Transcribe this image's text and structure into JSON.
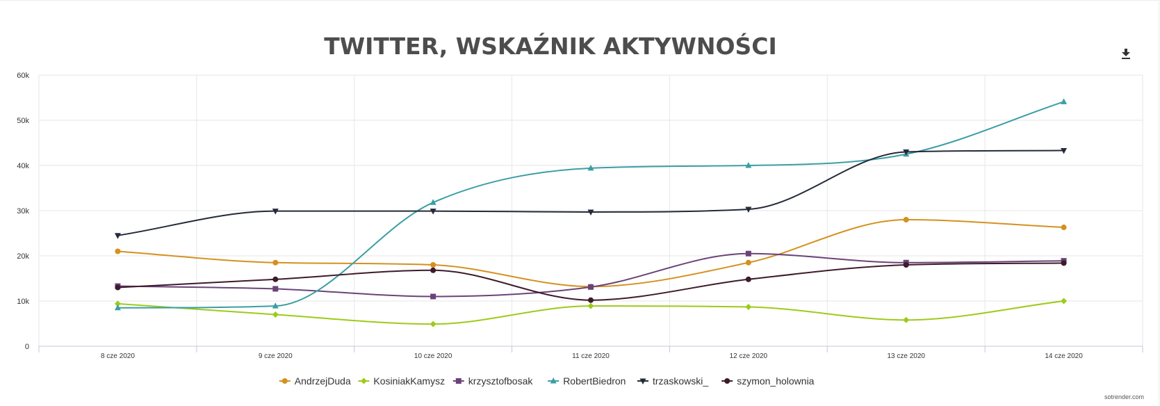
{
  "chart_data": {
    "type": "line",
    "title": "TWITTER, WSKAŹNIK AKTYWNOŚCI",
    "xlabel": "",
    "ylabel": "",
    "categories": [
      "8 cze 2020",
      "9 cze 2020",
      "10 cze 2020",
      "11 cze 2020",
      "12 cze 2020",
      "13 cze 2020",
      "14 cze 2020"
    ],
    "ylim": [
      0,
      60000
    ],
    "yticks": [
      0,
      10000,
      20000,
      30000,
      40000,
      50000,
      60000
    ],
    "ytick_labels": [
      "0",
      "10k",
      "20k",
      "30k",
      "40k",
      "50k",
      "60k"
    ],
    "grid": true,
    "legend_position": "bottom",
    "series": [
      {
        "name": "AndrzejDuda",
        "color": "#d4911f",
        "marker": "circle",
        "values": [
          21000,
          18500,
          18000,
          13200,
          18500,
          28000,
          26300
        ]
      },
      {
        "name": "KosiniakKamysz",
        "color": "#9ccb19",
        "marker": "diamond",
        "values": [
          9400,
          7000,
          4900,
          8900,
          8700,
          5800,
          10000
        ]
      },
      {
        "name": "krzysztofbosak",
        "color": "#6a4379",
        "marker": "square",
        "values": [
          13300,
          12700,
          11000,
          13100,
          20500,
          18500,
          18900
        ]
      },
      {
        "name": "RobertBiedron",
        "color": "#3b9ea4",
        "marker": "triangle",
        "values": [
          8500,
          8900,
          31800,
          39400,
          40000,
          42500,
          54100
        ]
      },
      {
        "name": "trzaskowski_",
        "color": "#242a3a",
        "marker": "triangle-down",
        "values": [
          24500,
          29900,
          29900,
          29700,
          30300,
          43000,
          43300
        ]
      },
      {
        "name": "szymon_holownia",
        "color": "#3e1a2b",
        "marker": "circle",
        "values": [
          13000,
          14800,
          16800,
          10200,
          14800,
          18000,
          18400
        ]
      }
    ]
  },
  "credit": "sotrender.com",
  "toolbar": {
    "download_icon": "download-icon"
  }
}
